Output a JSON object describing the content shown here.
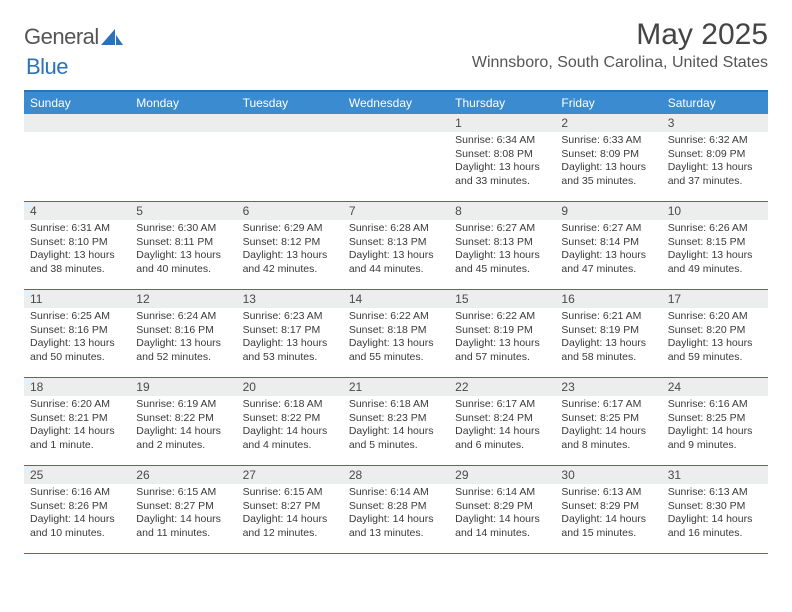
{
  "logo": {
    "text1": "General",
    "text2": "Blue"
  },
  "title": "May 2025",
  "location": "Winnsboro, South Carolina, United States",
  "colors": {
    "header_bg": "#3a8bd0",
    "border": "#2a73b8",
    "daybar": "#eceded",
    "text": "#3a3a3a"
  },
  "weekdays": [
    "Sunday",
    "Monday",
    "Tuesday",
    "Wednesday",
    "Thursday",
    "Friday",
    "Saturday"
  ],
  "startOffset": 4,
  "days": [
    {
      "n": 1,
      "sunrise": "6:34 AM",
      "sunset": "8:08 PM",
      "daylight": "13 hours and 33 minutes."
    },
    {
      "n": 2,
      "sunrise": "6:33 AM",
      "sunset": "8:09 PM",
      "daylight": "13 hours and 35 minutes."
    },
    {
      "n": 3,
      "sunrise": "6:32 AM",
      "sunset": "8:09 PM",
      "daylight": "13 hours and 37 minutes."
    },
    {
      "n": 4,
      "sunrise": "6:31 AM",
      "sunset": "8:10 PM",
      "daylight": "13 hours and 38 minutes."
    },
    {
      "n": 5,
      "sunrise": "6:30 AM",
      "sunset": "8:11 PM",
      "daylight": "13 hours and 40 minutes."
    },
    {
      "n": 6,
      "sunrise": "6:29 AM",
      "sunset": "8:12 PM",
      "daylight": "13 hours and 42 minutes."
    },
    {
      "n": 7,
      "sunrise": "6:28 AM",
      "sunset": "8:13 PM",
      "daylight": "13 hours and 44 minutes."
    },
    {
      "n": 8,
      "sunrise": "6:27 AM",
      "sunset": "8:13 PM",
      "daylight": "13 hours and 45 minutes."
    },
    {
      "n": 9,
      "sunrise": "6:27 AM",
      "sunset": "8:14 PM",
      "daylight": "13 hours and 47 minutes."
    },
    {
      "n": 10,
      "sunrise": "6:26 AM",
      "sunset": "8:15 PM",
      "daylight": "13 hours and 49 minutes."
    },
    {
      "n": 11,
      "sunrise": "6:25 AM",
      "sunset": "8:16 PM",
      "daylight": "13 hours and 50 minutes."
    },
    {
      "n": 12,
      "sunrise": "6:24 AM",
      "sunset": "8:16 PM",
      "daylight": "13 hours and 52 minutes."
    },
    {
      "n": 13,
      "sunrise": "6:23 AM",
      "sunset": "8:17 PM",
      "daylight": "13 hours and 53 minutes."
    },
    {
      "n": 14,
      "sunrise": "6:22 AM",
      "sunset": "8:18 PM",
      "daylight": "13 hours and 55 minutes."
    },
    {
      "n": 15,
      "sunrise": "6:22 AM",
      "sunset": "8:19 PM",
      "daylight": "13 hours and 57 minutes."
    },
    {
      "n": 16,
      "sunrise": "6:21 AM",
      "sunset": "8:19 PM",
      "daylight": "13 hours and 58 minutes."
    },
    {
      "n": 17,
      "sunrise": "6:20 AM",
      "sunset": "8:20 PM",
      "daylight": "13 hours and 59 minutes."
    },
    {
      "n": 18,
      "sunrise": "6:20 AM",
      "sunset": "8:21 PM",
      "daylight": "14 hours and 1 minute."
    },
    {
      "n": 19,
      "sunrise": "6:19 AM",
      "sunset": "8:22 PM",
      "daylight": "14 hours and 2 minutes."
    },
    {
      "n": 20,
      "sunrise": "6:18 AM",
      "sunset": "8:22 PM",
      "daylight": "14 hours and 4 minutes."
    },
    {
      "n": 21,
      "sunrise": "6:18 AM",
      "sunset": "8:23 PM",
      "daylight": "14 hours and 5 minutes."
    },
    {
      "n": 22,
      "sunrise": "6:17 AM",
      "sunset": "8:24 PM",
      "daylight": "14 hours and 6 minutes."
    },
    {
      "n": 23,
      "sunrise": "6:17 AM",
      "sunset": "8:25 PM",
      "daylight": "14 hours and 8 minutes."
    },
    {
      "n": 24,
      "sunrise": "6:16 AM",
      "sunset": "8:25 PM",
      "daylight": "14 hours and 9 minutes."
    },
    {
      "n": 25,
      "sunrise": "6:16 AM",
      "sunset": "8:26 PM",
      "daylight": "14 hours and 10 minutes."
    },
    {
      "n": 26,
      "sunrise": "6:15 AM",
      "sunset": "8:27 PM",
      "daylight": "14 hours and 11 minutes."
    },
    {
      "n": 27,
      "sunrise": "6:15 AM",
      "sunset": "8:27 PM",
      "daylight": "14 hours and 12 minutes."
    },
    {
      "n": 28,
      "sunrise": "6:14 AM",
      "sunset": "8:28 PM",
      "daylight": "14 hours and 13 minutes."
    },
    {
      "n": 29,
      "sunrise": "6:14 AM",
      "sunset": "8:29 PM",
      "daylight": "14 hours and 14 minutes."
    },
    {
      "n": 30,
      "sunrise": "6:13 AM",
      "sunset": "8:29 PM",
      "daylight": "14 hours and 15 minutes."
    },
    {
      "n": 31,
      "sunrise": "6:13 AM",
      "sunset": "8:30 PM",
      "daylight": "14 hours and 16 minutes."
    }
  ],
  "labels": {
    "sunrise": "Sunrise:",
    "sunset": "Sunset:",
    "daylight": "Daylight:"
  }
}
